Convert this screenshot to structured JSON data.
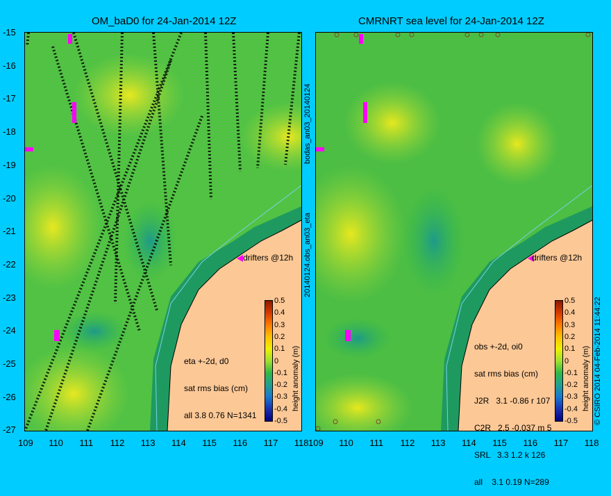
{
  "left": {
    "title": "OM_baD0 for 24-Jan-2014 12Z",
    "legend": {
      "line1": "eta +-2d, d0",
      "line2": "sat rms bias (cm)",
      "line3": "all 3.8 0.76 N=1341"
    },
    "drifters": "drifters @12h"
  },
  "right": {
    "title": "CMRNRT sea level  for 24-Jan-2014 12Z",
    "legend": {
      "line1": "obs +-2d, oi0",
      "line2": "sat rms bias (cm)",
      "rows": [
        "J2R   3.1 -0.86 r 107",
        "C2R   2.5 -0.037 m 5",
        "SRL   3.3 1.2 k 126",
        "all    3.1 0.19 N=289"
      ]
    },
    "drifters": "drifters @12h"
  },
  "side_labels": {
    "top": "bodas_an03_20140124",
    "bottom": "20140124.obs_an03_eta",
    "right": "© CSIRO 2014   04-Feb-2014 11:44:22"
  },
  "axes": {
    "lat_ticks": [
      "-15",
      "-16",
      "-17",
      "-18",
      "-19",
      "-20",
      "-21",
      "-22",
      "-23",
      "-24",
      "-25",
      "-26",
      "-27"
    ],
    "lon_ticks": [
      "109",
      "110",
      "111",
      "112",
      "113",
      "114",
      "115",
      "116",
      "117",
      "118"
    ]
  },
  "colorbar": {
    "label": "height anomaly (m)",
    "ticks": [
      "0.5",
      "0.4",
      "0.3",
      "0.2",
      "0.1",
      "0",
      "-0.1",
      "-0.2",
      "-0.3",
      "-0.4",
      "-0.5"
    ],
    "colors": [
      "#8b1a00",
      "#d63a00",
      "#ff7a00",
      "#ffc000",
      "#f0f000",
      "#a0e030",
      "#30b848",
      "#20a090",
      "#1878d0",
      "#1830b0",
      "#000080"
    ]
  }
}
